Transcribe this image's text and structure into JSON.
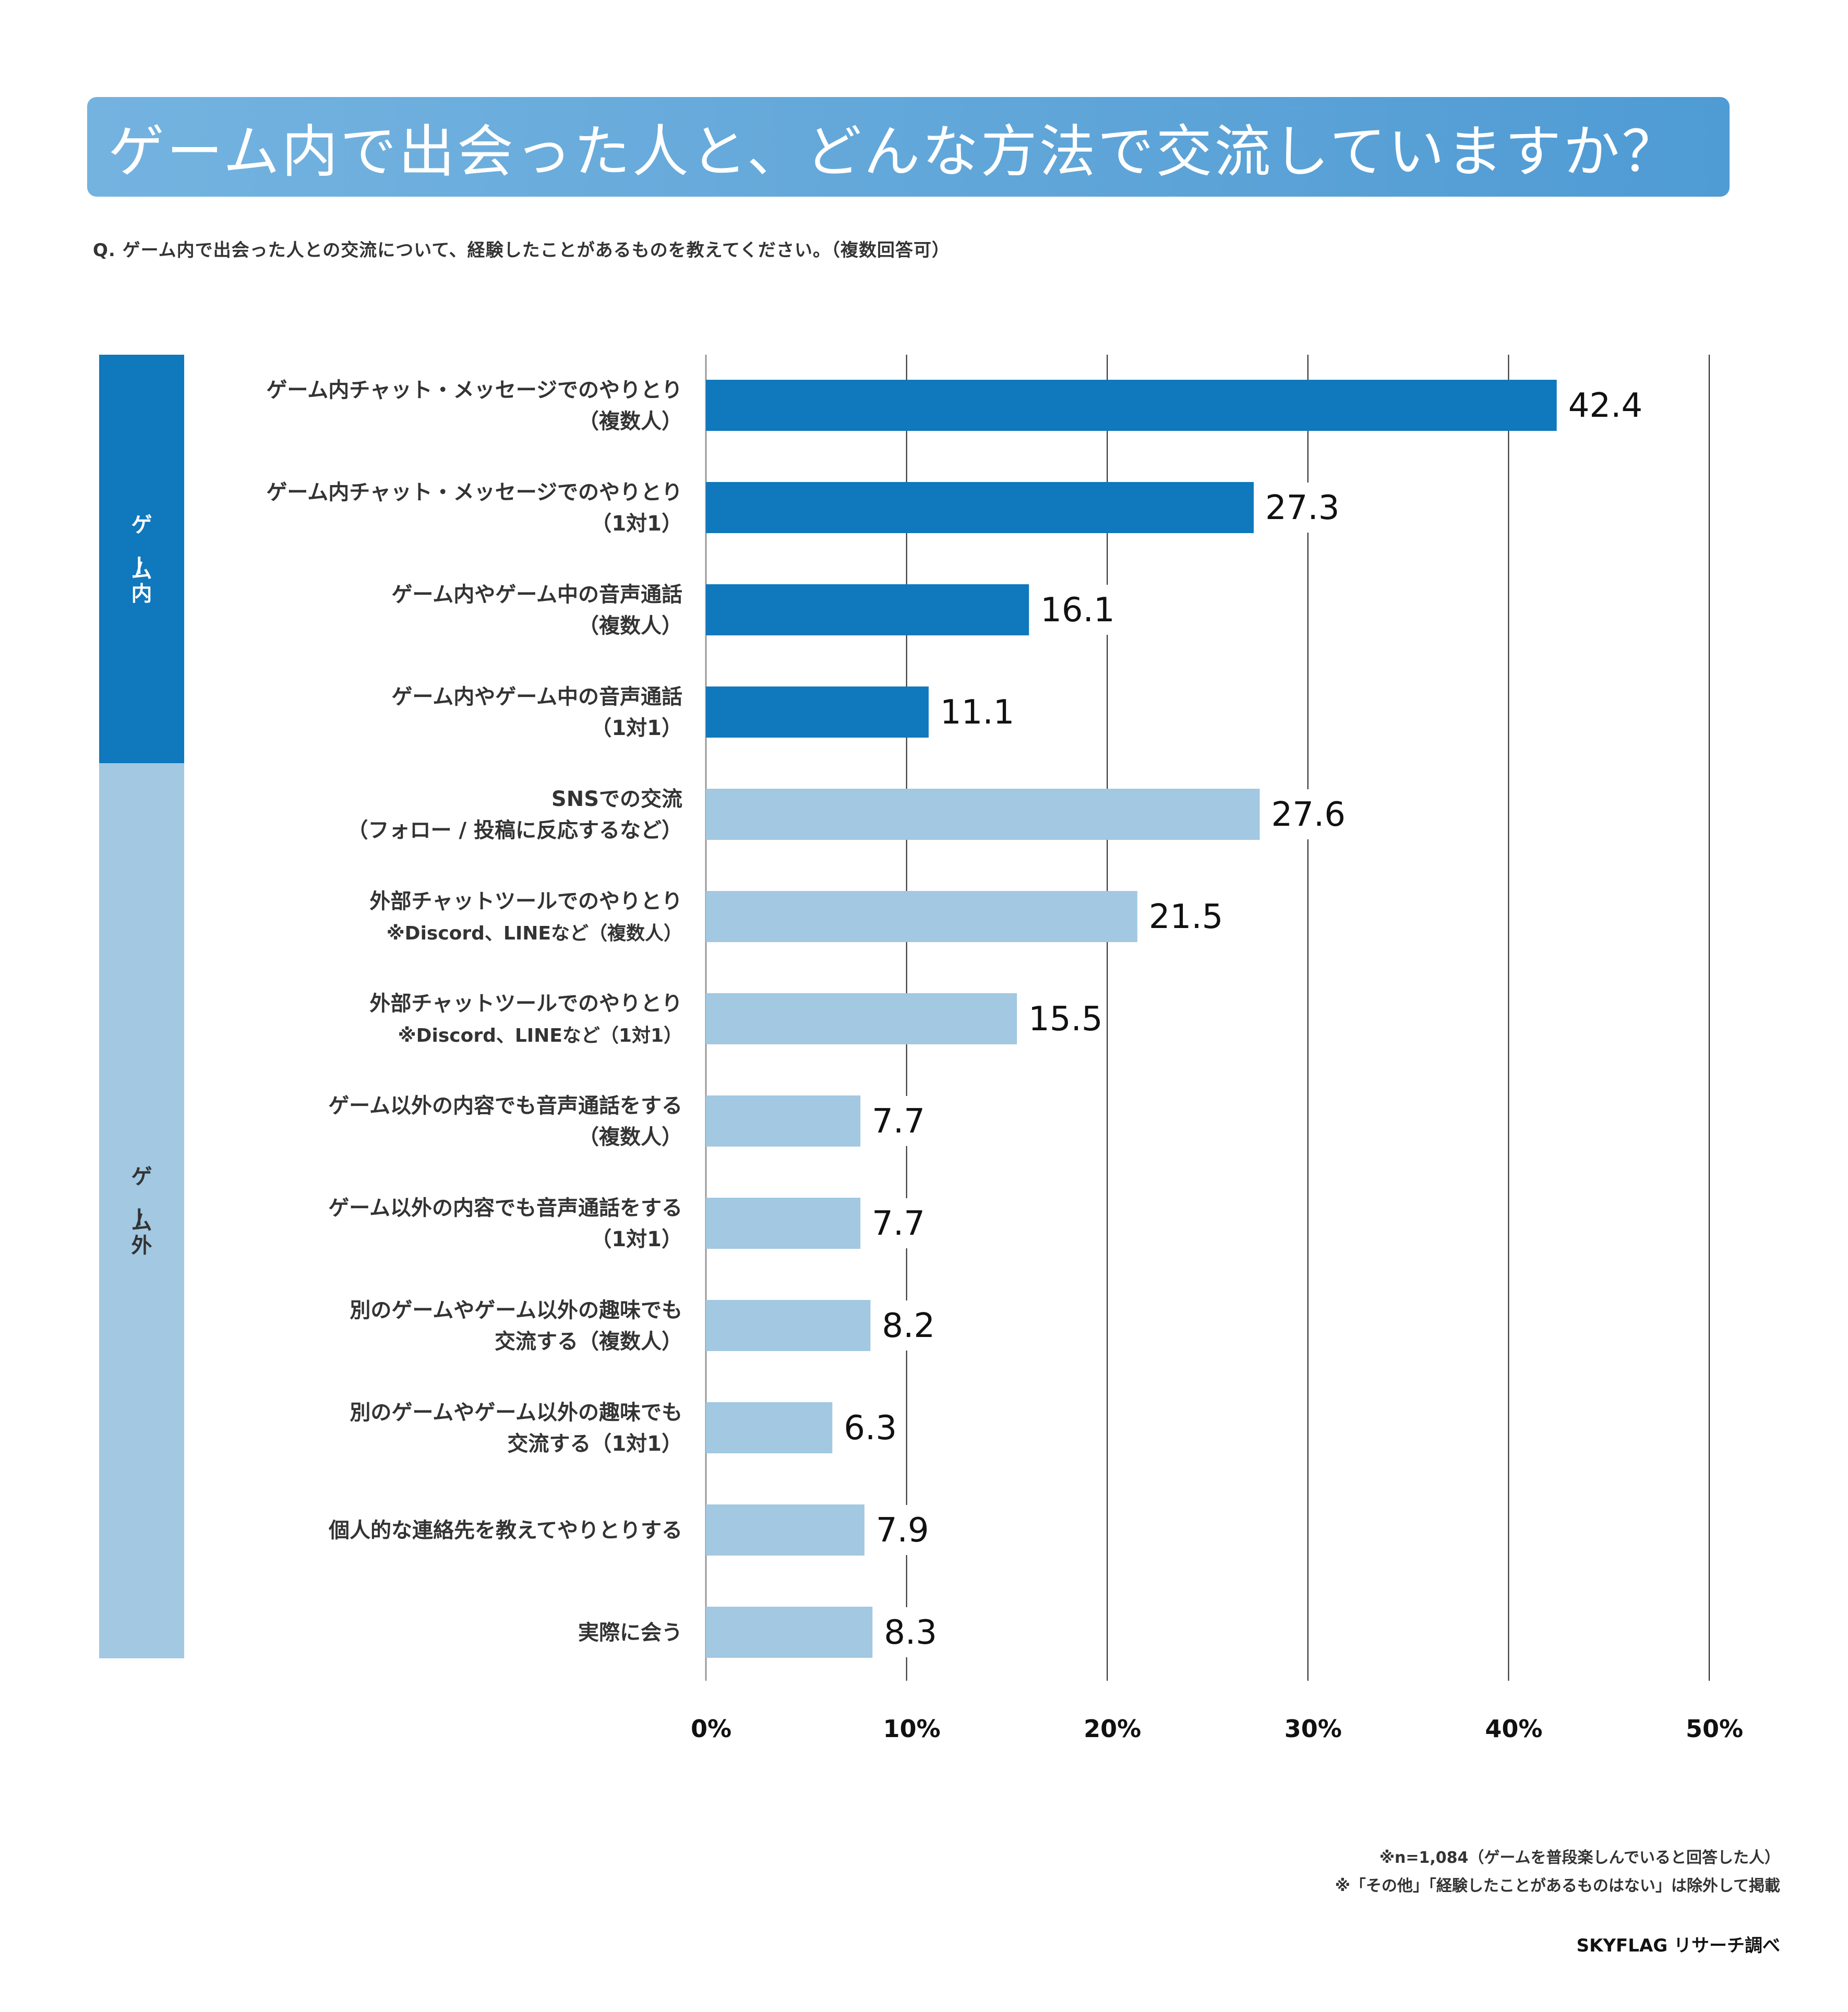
{
  "header": {
    "title": "ゲーム内で出会った人と、どんな方法で交流していますか？",
    "question": "Q. ゲーム内で出会った人との交流について、経験したことがあるものを教えてください。（複数回答可）"
  },
  "colors": {
    "title_bg_start": "#74b3e0",
    "title_bg_end": "#4f9bd4",
    "in_game": "#1078bc",
    "out_game": "#a2c8e2",
    "gridline": "#222222",
    "zero_axis": "#999999"
  },
  "chart_data": {
    "type": "bar",
    "orientation": "horizontal",
    "title": "ゲーム内で出会った人と、どんな方法で交流していますか？",
    "xlabel": "",
    "ylabel": "",
    "xlim": [
      0,
      50
    ],
    "x_ticks": [
      0,
      10,
      20,
      30,
      40,
      50
    ],
    "x_tick_labels": [
      "0%",
      "10%",
      "20%",
      "30%",
      "40%",
      "50%"
    ],
    "grid": true,
    "unit": "%",
    "groups": [
      {
        "name": "ゲーム内",
        "color": "#1078bc",
        "text_color": "#ffffff",
        "start": 0,
        "end": 3
      },
      {
        "name": "ゲーム外",
        "color": "#a2c8e2",
        "text_color": "#333333",
        "start": 4,
        "end": 12
      }
    ],
    "categories": [
      [
        "ゲーム内チャット・メッセージでのやりとり",
        "（複数人）"
      ],
      [
        "ゲーム内チャット・メッセージでのやりとり",
        "（1対1）"
      ],
      [
        "ゲーム内やゲーム中の音声通話",
        "（複数人）"
      ],
      [
        "ゲーム内やゲーム中の音声通話",
        "（1対1）"
      ],
      [
        "SNSでの交流",
        "（フォロー / 投稿に反応するなど）"
      ],
      [
        "外部チャットツールでのやりとり",
        "※Discord、LINEなど（複数人）"
      ],
      [
        "外部チャットツールでのやりとり",
        "※Discord、LINEなど（1対1）"
      ],
      [
        "ゲーム以外の内容でも音声通話をする",
        "（複数人）"
      ],
      [
        "ゲーム以外の内容でも音声通話をする",
        "（1対1）"
      ],
      [
        "別のゲームやゲーム以外の趣味でも",
        "交流する（複数人）"
      ],
      [
        "別のゲームやゲーム以外の趣味でも",
        "交流する（1対1）"
      ],
      [
        "個人的な連絡先を教えてやりとりする"
      ],
      [
        "実際に会う"
      ]
    ],
    "values": [
      42.4,
      27.3,
      16.1,
      11.1,
      27.6,
      21.5,
      15.5,
      7.7,
      7.7,
      8.2,
      6.3,
      7.9,
      8.3
    ],
    "value_labels": [
      "42.4",
      "27.3",
      "16.1",
      "11.1",
      "27.6",
      "21.5",
      "15.5",
      "7.7",
      "7.7",
      "8.2",
      "6.3",
      "7.9",
      "8.3"
    ],
    "legend": "none"
  },
  "footer": {
    "note_sample": "※n=1,084（ゲームを普段楽しんでいると回答した人）",
    "note_excluded": "※「その他」「経験したことがあるものはない」は除外して掲載",
    "credit": "SKYFLAG リサーチ調べ"
  }
}
